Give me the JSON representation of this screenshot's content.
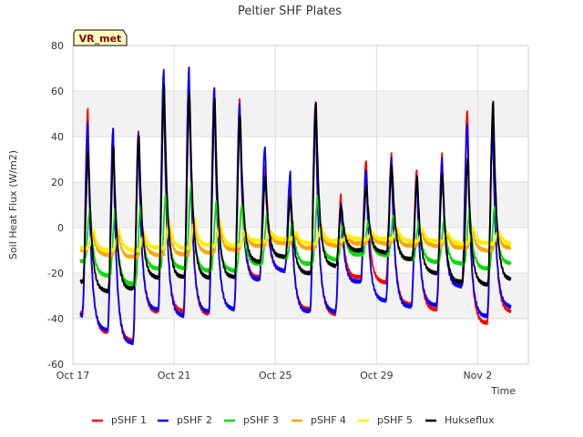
{
  "chart_data": {
    "type": "line",
    "title": "Peltier SHF Plates",
    "xlabel": "Time",
    "ylabel": "Soil Heat Flux (W/m2)",
    "site_badge": "VR_met",
    "xlim": [
      0,
      18
    ],
    "ylim": [
      -60,
      80
    ],
    "x_ticks": [
      {
        "label": "Oct 17",
        "day": 0
      },
      {
        "label": "Oct 21",
        "day": 4
      },
      {
        "label": "Oct 25",
        "day": 8
      },
      {
        "label": "Oct 29",
        "day": 12
      },
      {
        "label": "Nov 2",
        "day": 16
      }
    ],
    "y_ticks": [
      -60,
      -40,
      -20,
      0,
      20,
      40,
      60,
      80
    ],
    "x_start_day": 0.3,
    "x_end_day": 17.3,
    "samples_per_day": 48,
    "daily_peak_hour": 14,
    "series": [
      {
        "name": "pSHF 1",
        "color": "#ff0000",
        "peak_hour": 14.3,
        "min": [
          -38,
          -46,
          -50,
          -37,
          -37,
          -38,
          -36,
          -22,
          -19,
          -36,
          -38,
          -22,
          -24,
          -34,
          -36,
          -25,
          -42,
          -37
        ],
        "max": [
          52,
          44,
          42,
          62,
          70,
          62,
          56,
          28,
          20,
          56,
          14,
          30,
          32,
          26,
          32,
          52,
          46,
          0
        ]
      },
      {
        "name": "pSHF 2",
        "color": "#0000ff",
        "peak_hour": 14.3,
        "min": [
          -39,
          -45,
          -51,
          -36,
          -39,
          -37,
          -36,
          -23,
          -19,
          -37,
          -37,
          -24,
          -32,
          -35,
          -34,
          -26,
          -39,
          -35
        ],
        "max": [
          46,
          44,
          41,
          70,
          70,
          62,
          54,
          36,
          24,
          54,
          10,
          26,
          30,
          22,
          30,
          46,
          44,
          0
        ]
      },
      {
        "name": "pSHF 3",
        "color": "#00dd00",
        "peak_hour": 16.5,
        "min": [
          -15,
          -21,
          -25,
          -18,
          -18,
          -19,
          -19,
          -16,
          -13,
          -16,
          -14,
          -12,
          -12,
          -14,
          -15,
          -16,
          -18,
          -16
        ],
        "max": [
          9,
          9,
          10,
          15,
          20,
          12,
          10,
          6,
          3,
          14,
          2,
          3,
          6,
          3,
          4,
          8,
          10,
          0
        ]
      },
      {
        "name": "pSHF 4",
        "color": "#ffa500",
        "peak_hour": 19,
        "min": [
          -10,
          -12,
          -13,
          -12,
          -12,
          -11,
          -10,
          -8,
          -7,
          -9,
          -8,
          -7,
          -7,
          -8,
          -8,
          -9,
          -10,
          -9
        ],
        "max": [
          -2,
          -2,
          -3,
          2,
          3,
          2,
          -1,
          -2,
          -3,
          0,
          -3,
          -2,
          -1,
          -2,
          -2,
          -1,
          -2,
          -2
        ]
      },
      {
        "name": "pSHF 5",
        "color": "#ffee00",
        "peak_hour": 20,
        "min": [
          -9,
          -10,
          -10,
          -9,
          -9,
          -8,
          -8,
          -6,
          -5,
          -7,
          -6,
          -5,
          -5,
          -6,
          -6,
          -7,
          -7,
          -7
        ],
        "max": [
          -1,
          -1,
          -2,
          3,
          4,
          3,
          -1,
          -2,
          -2,
          1,
          -3,
          -2,
          0,
          -1,
          -2,
          0,
          -1,
          -1
        ]
      },
      {
        "name": "Hukseflux",
        "color": "#000000",
        "peak_hour": 14.8,
        "min": [
          -24,
          -28,
          -27,
          -22,
          -22,
          -22,
          -22,
          -15,
          -13,
          -20,
          -17,
          -10,
          -11,
          -14,
          -20,
          -24,
          -25,
          -23
        ],
        "max": [
          34,
          35,
          41,
          62,
          60,
          56,
          50,
          22,
          14,
          54,
          10,
          18,
          28,
          22,
          24,
          30,
          56,
          0
        ]
      }
    ]
  }
}
